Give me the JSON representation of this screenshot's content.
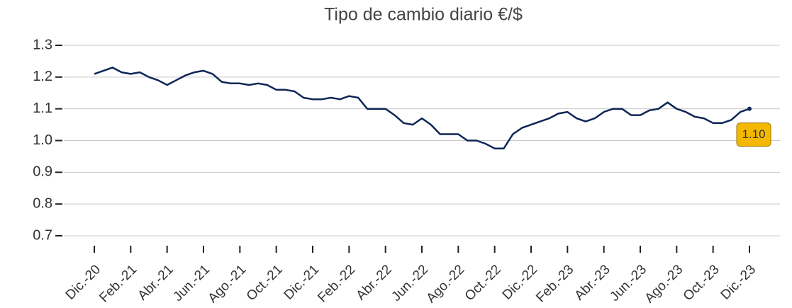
{
  "chart_data": {
    "type": "line",
    "title": "Tipo de cambio diario €/$",
    "categories": [
      "Dic.-20",
      null,
      null,
      null,
      "Feb.-21",
      null,
      null,
      null,
      "Abr.-21",
      null,
      null,
      null,
      "Jun.-21",
      null,
      null,
      null,
      "Ago.-21",
      null,
      null,
      null,
      "Oct.-21",
      null,
      null,
      null,
      "Dic.-21",
      null,
      null,
      null,
      "Feb.-22",
      null,
      null,
      null,
      "Abr.-22",
      null,
      null,
      null,
      "Jun.-22",
      null,
      null,
      null,
      "Ago.-22",
      null,
      null,
      null,
      "Oct.-22",
      null,
      null,
      null,
      "Dic.-22",
      null,
      null,
      null,
      "Feb.-23",
      null,
      null,
      null,
      "Abr.-23",
      null,
      null,
      null,
      "Jun.-23",
      null,
      null,
      null,
      "Ago.-23",
      null,
      null,
      null,
      "Oct.-23",
      null,
      null,
      null,
      "Dic.-23"
    ],
    "series": [
      {
        "name": "€/$",
        "color": "#0d2657",
        "values": [
          1.21,
          1.22,
          1.23,
          1.215,
          1.21,
          1.215,
          1.2,
          1.19,
          1.175,
          1.19,
          1.205,
          1.215,
          1.22,
          1.21,
          1.185,
          1.18,
          1.18,
          1.175,
          1.18,
          1.175,
          1.16,
          1.16,
          1.155,
          1.135,
          1.13,
          1.13,
          1.135,
          1.13,
          1.14,
          1.135,
          1.1,
          1.1,
          1.1,
          1.08,
          1.055,
          1.05,
          1.07,
          1.05,
          1.02,
          1.02,
          1.02,
          1.0,
          1.0,
          0.99,
          0.975,
          0.975,
          1.02,
          1.04,
          1.05,
          1.06,
          1.07,
          1.085,
          1.09,
          1.07,
          1.06,
          1.07,
          1.09,
          1.1,
          1.1,
          1.08,
          1.08,
          1.095,
          1.1,
          1.12,
          1.1,
          1.09,
          1.075,
          1.07,
          1.055,
          1.055,
          1.065,
          1.09,
          1.1
        ]
      }
    ],
    "ylim": [
      0.7,
      1.3
    ],
    "yticks": [
      0.7,
      0.8,
      0.9,
      {
        "value": 1,
        "label": "1.0"
      },
      1.1,
      1.2,
      1.3
    ],
    "grid": true,
    "annotation": "1.10",
    "annotation_color": "#f5b800"
  }
}
